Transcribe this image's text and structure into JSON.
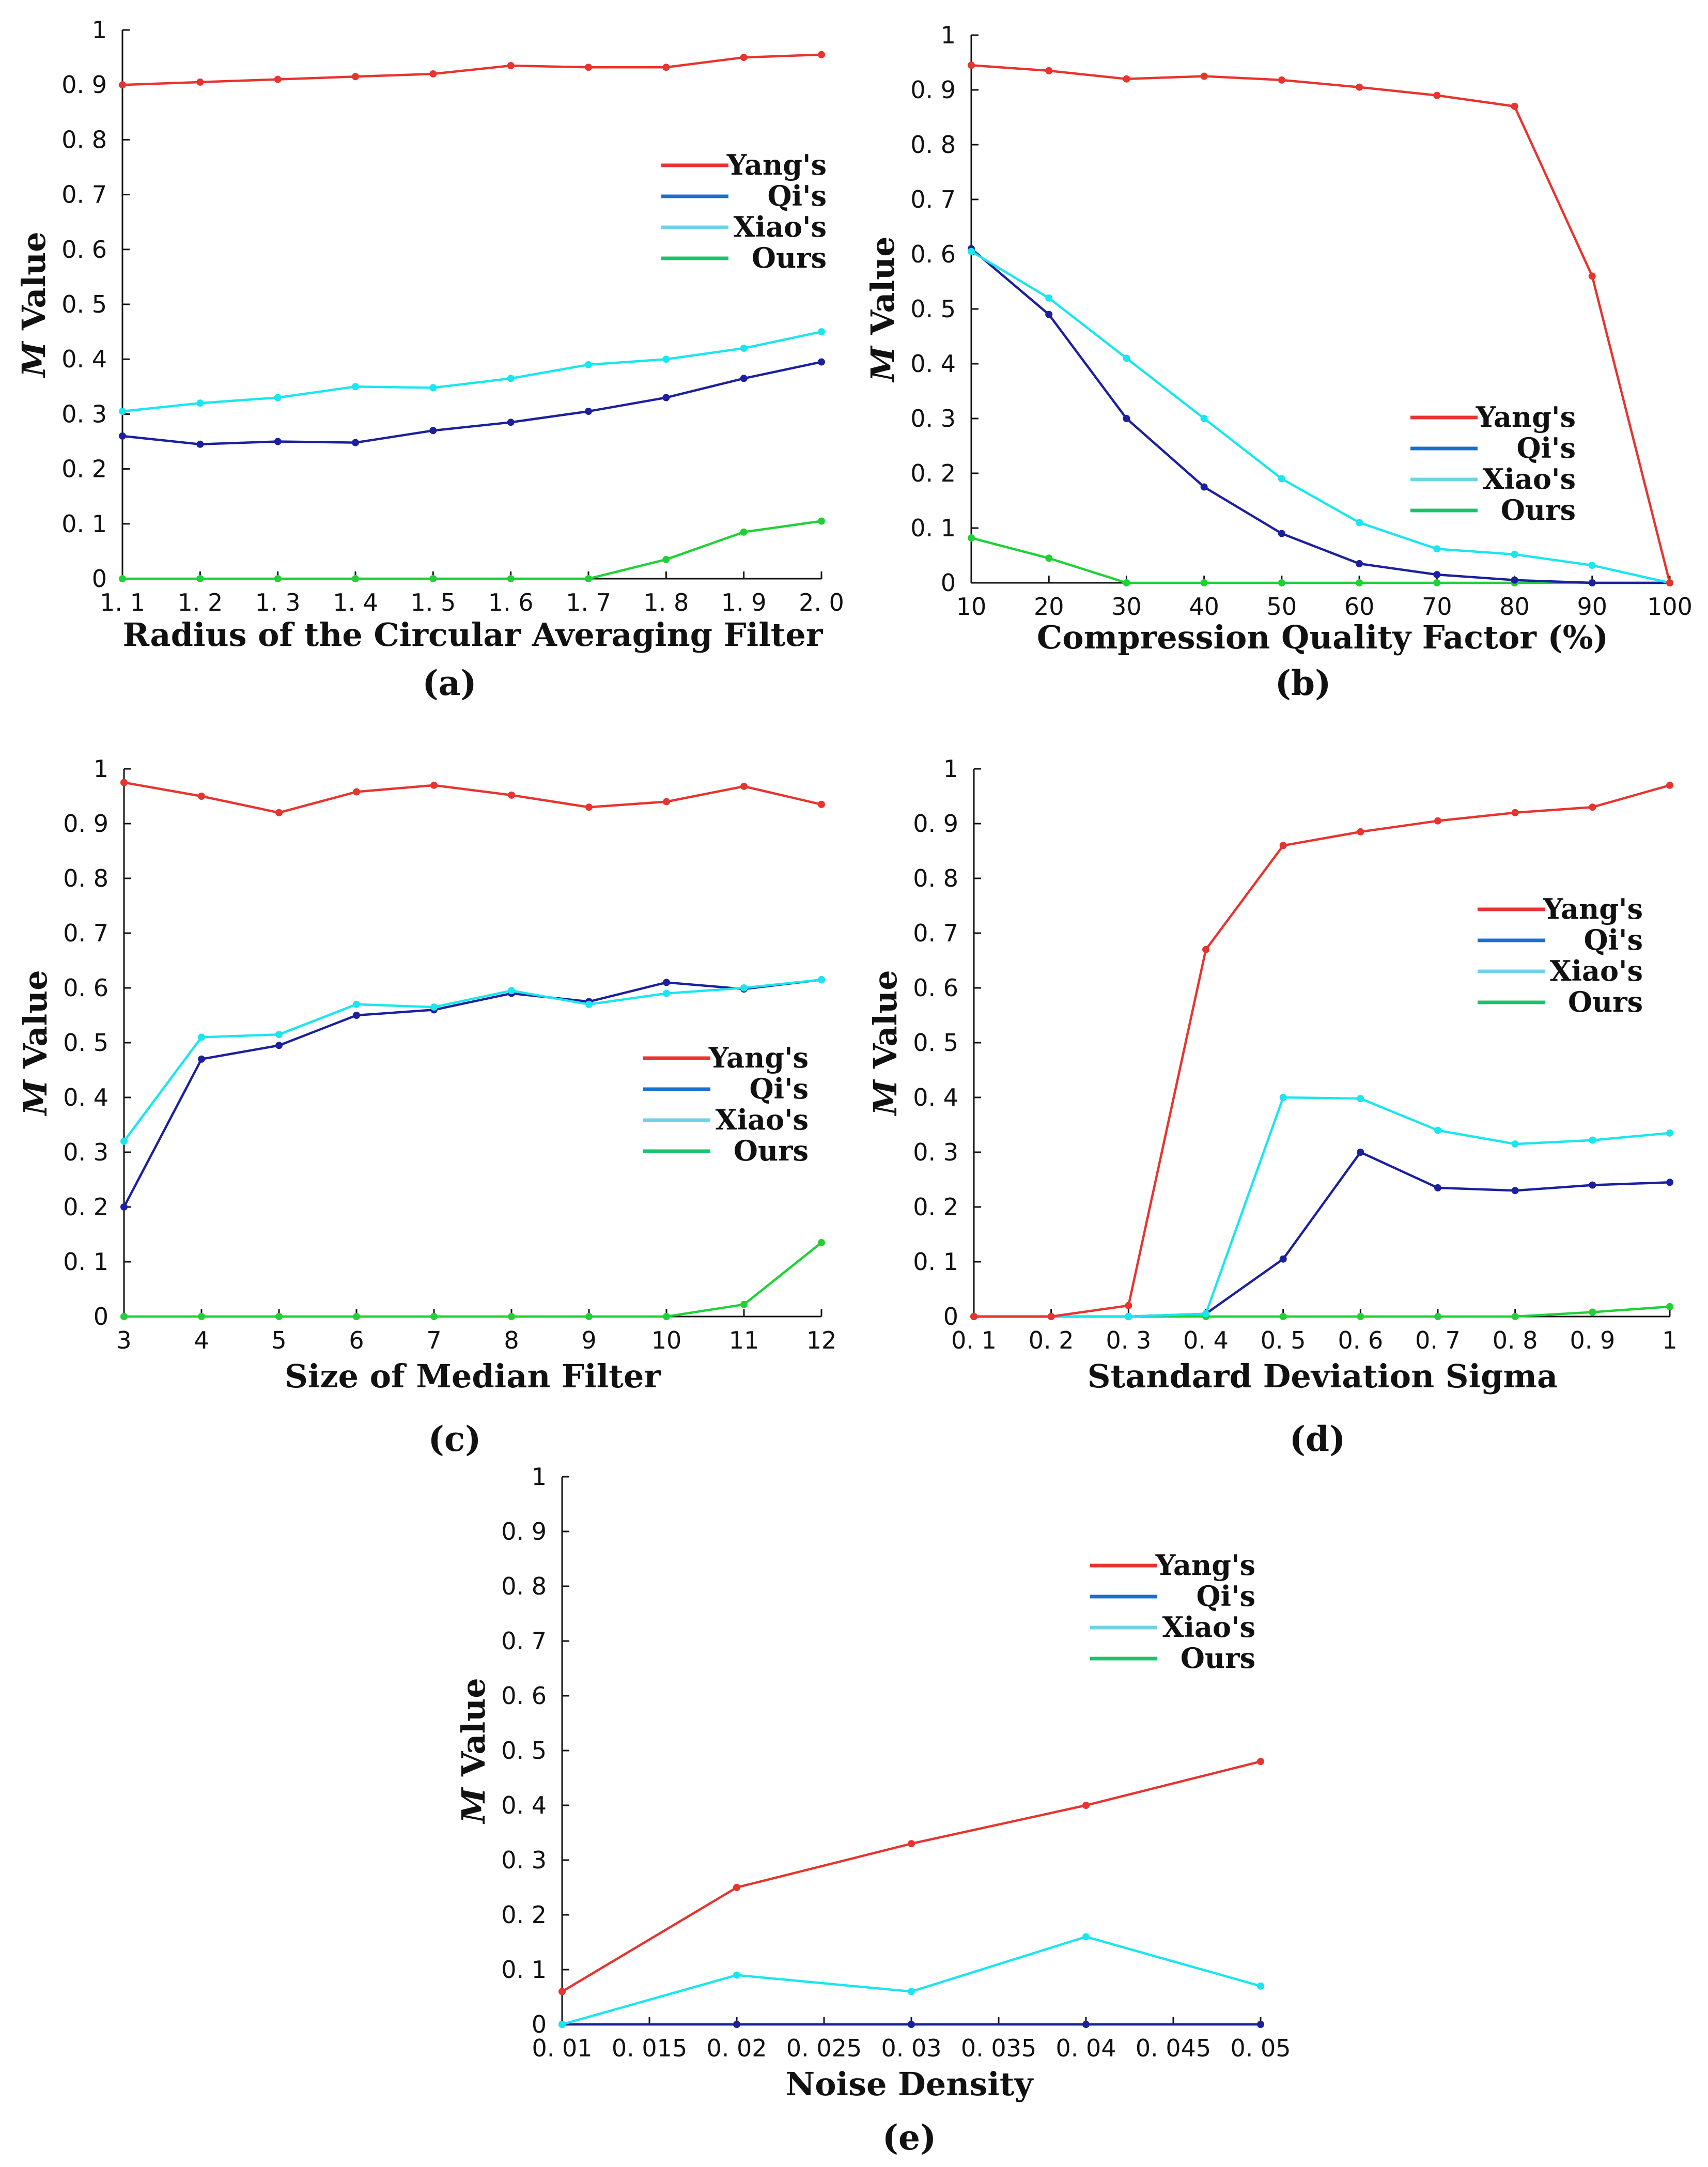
{
  "series_colors": {
    "Yang's": "#e8332e",
    "Qi's": "#1c1f9e",
    "Xiao's": "#19e6ef",
    "Ours": "#1ed236"
  },
  "legend_swatch_colors": {
    "Yang's": "#e8332e",
    "Qi's": "#1a6fd0",
    "Xiao's": "#6fd2e8",
    "Ours": "#19c46a"
  },
  "chart_data": [
    {
      "type": "line",
      "panel": "(a)",
      "xlabel": "Radius of the Circular Averaging Filter",
      "ylabel_italic": "M",
      "ylabel": "Value",
      "x": [
        1.1,
        1.2,
        1.3,
        1.4,
        1.5,
        1.6,
        1.7,
        1.8,
        1.9,
        2.0
      ],
      "xticks": [
        "1. 1",
        "1. 2",
        "1. 3",
        "1. 4",
        "1. 5",
        "1. 6",
        "1. 7",
        "1. 8",
        "1. 9",
        "2. 0"
      ],
      "yticks": [
        "0",
        "0. 1",
        "0. 2",
        "0. 3",
        "0. 4",
        "0. 5",
        "0. 6",
        "0. 7",
        "0. 8",
        "0. 9",
        "1"
      ],
      "xlim": [
        1.1,
        2.0
      ],
      "ylim": [
        0,
        1
      ],
      "legend": [
        "Yang's",
        "Qi's",
        "Xiao's",
        "Ours"
      ],
      "legend_position": "right",
      "series": [
        {
          "name": "Yang's",
          "values": [
            0.9,
            0.905,
            0.91,
            0.915,
            0.92,
            0.935,
            0.932,
            0.932,
            0.95,
            0.955
          ]
        },
        {
          "name": "Qi's",
          "values": [
            0.26,
            0.245,
            0.25,
            0.248,
            0.27,
            0.285,
            0.305,
            0.33,
            0.365,
            0.395
          ]
        },
        {
          "name": "Xiao's",
          "values": [
            0.305,
            0.32,
            0.33,
            0.35,
            0.348,
            0.365,
            0.39,
            0.4,
            0.42,
            0.45
          ]
        },
        {
          "name": "Ours",
          "values": [
            0,
            0,
            0,
            0,
            0,
            0,
            0,
            0.035,
            0.085,
            0.105
          ]
        }
      ]
    },
    {
      "type": "line",
      "panel": "(b)",
      "xlabel": "Compression Quality Factor (%)",
      "ylabel_italic": "M",
      "ylabel": "Value",
      "x": [
        10,
        20,
        30,
        40,
        50,
        60,
        70,
        80,
        90,
        100
      ],
      "xticks": [
        "10",
        "20",
        "30",
        "40",
        "50",
        "60",
        "70",
        "80",
        "90",
        "100"
      ],
      "yticks": [
        "0",
        "0. 1",
        "0. 2",
        "0. 3",
        "0. 4",
        "0. 5",
        "0. 6",
        "0. 7",
        "0. 8",
        "0. 9",
        "1"
      ],
      "xlim": [
        10,
        100
      ],
      "ylim": [
        0,
        1
      ],
      "legend": [
        "Yang's",
        "Qi's",
        "Xiao's",
        "Ours"
      ],
      "legend_position": "right",
      "series": [
        {
          "name": "Yang's",
          "values": [
            0.945,
            0.935,
            0.92,
            0.925,
            0.918,
            0.905,
            0.89,
            0.87,
            0.56,
            0.0
          ]
        },
        {
          "name": "Qi's",
          "values": [
            0.61,
            0.49,
            0.3,
            0.175,
            0.09,
            0.035,
            0.015,
            0.005,
            0.0,
            0.0
          ]
        },
        {
          "name": "Xiao's",
          "values": [
            0.605,
            0.52,
            0.41,
            0.3,
            0.19,
            0.11,
            0.062,
            0.052,
            0.032,
            0.0
          ]
        },
        {
          "name": "Ours",
          "values": [
            0.082,
            0.045,
            0.0,
            0.0,
            0.0,
            0.0,
            0.0,
            0.0,
            0.0,
            0.0
          ]
        }
      ]
    },
    {
      "type": "line",
      "panel": "(c)",
      "xlabel": "Size of Median Filter",
      "ylabel_italic": "M",
      "ylabel": "Value",
      "x": [
        3,
        4,
        5,
        6,
        7,
        8,
        9,
        10,
        11,
        12
      ],
      "xticks": [
        "3",
        "4",
        "5",
        "6",
        "7",
        "8",
        "9",
        "10",
        "11",
        "12"
      ],
      "yticks": [
        "0",
        "0. 1",
        "0. 2",
        "0. 3",
        "0. 4",
        "0. 5",
        "0. 6",
        "0. 7",
        "0. 8",
        "0. 9",
        "1"
      ],
      "xlim": [
        3,
        12
      ],
      "ylim": [
        0,
        1
      ],
      "legend": [
        "Yang's",
        "Qi's",
        "Xiao's",
        "Ours"
      ],
      "legend_position": "right",
      "series": [
        {
          "name": "Yang's",
          "values": [
            0.975,
            0.95,
            0.92,
            0.958,
            0.97,
            0.952,
            0.93,
            0.94,
            0.968,
            0.935
          ]
        },
        {
          "name": "Qi's",
          "values": [
            0.2,
            0.47,
            0.495,
            0.55,
            0.56,
            0.59,
            0.575,
            0.61,
            0.598,
            0.615
          ]
        },
        {
          "name": "Xiao's",
          "values": [
            0.32,
            0.51,
            0.515,
            0.57,
            0.565,
            0.595,
            0.57,
            0.59,
            0.6,
            0.615
          ]
        },
        {
          "name": "Ours",
          "values": [
            0,
            0,
            0,
            0,
            0,
            0,
            0,
            0,
            0.022,
            0.135
          ]
        }
      ]
    },
    {
      "type": "line",
      "panel": "(d)",
      "xlabel": "Standard Deviation Sigma",
      "ylabel_italic": "M",
      "ylabel": "Value",
      "x": [
        0.1,
        0.2,
        0.3,
        0.4,
        0.5,
        0.6,
        0.7,
        0.8,
        0.9,
        1.0
      ],
      "xticks": [
        "0. 1",
        "0. 2",
        "0. 3",
        "0. 4",
        "0. 5",
        "0. 6",
        "0. 7",
        "0. 8",
        "0. 9",
        "1"
      ],
      "yticks": [
        "0",
        "0. 1",
        "0. 2",
        "0. 3",
        "0. 4",
        "0. 5",
        "0. 6",
        "0. 7",
        "0. 8",
        "0. 9",
        "1"
      ],
      "xlim": [
        0.1,
        1.0
      ],
      "ylim": [
        0,
        1
      ],
      "legend": [
        "Yang's",
        "Qi's",
        "Xiao's",
        "Ours"
      ],
      "legend_position": "right",
      "series": [
        {
          "name": "Yang's",
          "values": [
            0.0,
            0.0,
            0.02,
            0.67,
            0.86,
            0.885,
            0.905,
            0.92,
            0.93,
            0.97
          ]
        },
        {
          "name": "Qi's",
          "values": [
            0.0,
            0.0,
            0.0,
            0.005,
            0.105,
            0.3,
            0.235,
            0.23,
            0.24,
            0.245
          ]
        },
        {
          "name": "Xiao's",
          "values": [
            0.0,
            0.0,
            0.0,
            0.005,
            0.4,
            0.398,
            0.34,
            0.315,
            0.322,
            0.335
          ]
        },
        {
          "name": "Ours",
          "values": [
            0,
            0,
            0,
            0,
            0,
            0,
            0,
            0,
            0.008,
            0.018
          ]
        }
      ]
    },
    {
      "type": "line",
      "panel": "(e)",
      "xlabel": "Noise Density",
      "ylabel_italic": "M",
      "ylabel": "Value",
      "x": [
        0.01,
        0.02,
        0.03,
        0.04,
        0.05
      ],
      "xticks": [
        "0. 01",
        "0. 015",
        "0. 02",
        "0. 025",
        "0. 03",
        "0. 035",
        "0. 04",
        "0. 045",
        "0. 05"
      ],
      "xtick_values": [
        0.01,
        0.015,
        0.02,
        0.025,
        0.03,
        0.035,
        0.04,
        0.045,
        0.05
      ],
      "yticks": [
        "0",
        "0. 1",
        "0. 2",
        "0. 3",
        "0. 4",
        "0. 5",
        "0. 6",
        "0. 7",
        "0. 8",
        "0. 9",
        "1"
      ],
      "xlim": [
        0.01,
        0.05
      ],
      "ylim": [
        0,
        1
      ],
      "legend": [
        "Yang's",
        "Qi's",
        "Xiao's",
        "Ours"
      ],
      "legend_position": "right",
      "series": [
        {
          "name": "Yang's",
          "values": [
            0.06,
            0.25,
            0.33,
            0.4,
            0.48
          ]
        },
        {
          "name": "Qi's",
          "values": [
            0.0,
            0.0,
            0.0,
            0.0,
            0.0
          ]
        },
        {
          "name": "Xiao's",
          "values": [
            0.0,
            0.09,
            0.06,
            0.16,
            0.07
          ]
        },
        {
          "name": "Ours",
          "values": [
            0.0,
            0.0,
            0.0,
            0.0,
            0.0
          ]
        }
      ]
    }
  ]
}
